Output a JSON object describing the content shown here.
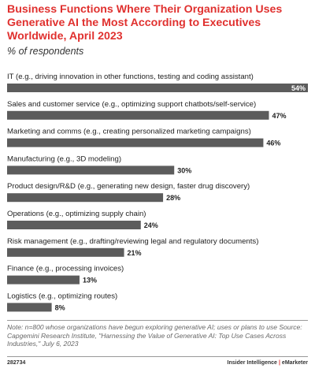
{
  "title": "Business Functions Where Their Organization Uses Generative AI the Most According to Executives Worldwide, April 2023",
  "subtitle": "% of respondents",
  "footnote": "Note: n=800 whose organizations have begun exploring generative AI; uses or plans to use Source: Capgemini Research Institute, \"Harnessing the Value of Generative AI: Top Use Cases Across Industries,\" July 6, 2023",
  "footer": {
    "id": "282734",
    "brand_left": "Insider Intelligence",
    "separator": "|",
    "brand_right": "eMarketer"
  },
  "colors": {
    "title": "#e0312f",
    "bar": "#5c5c5c",
    "value_inside": "#ffffff",
    "value_outside": "#222222"
  },
  "chart_data": {
    "type": "bar",
    "orientation": "horizontal",
    "categories": [
      "IT (e.g., driving innovation in other functions, testing and coding assistant)",
      "Sales and customer service (e.g., optimizing support chatbots/self-service)",
      "Marketing and comms (e.g., creating personalized marketing campaigns)",
      "Manufacturing (e.g., 3D modeling)",
      "Product design/R&D (e.g., generating new design, faster drug discovery)",
      "Operations (e.g., optimizing supply chain)",
      "Risk management (e.g., drafting/reviewing legal and regulatory documents)",
      "Finance (e.g., processing invoices)",
      "Logistics (e.g., optimizing routes)"
    ],
    "values": [
      54,
      47,
      46,
      30,
      28,
      24,
      21,
      13,
      8
    ],
    "value_labels": [
      "54%",
      "47%",
      "46%",
      "30%",
      "28%",
      "24%",
      "21%",
      "13%",
      "8%"
    ],
    "xlim": [
      0,
      54
    ],
    "grid": false,
    "legend": "none"
  }
}
